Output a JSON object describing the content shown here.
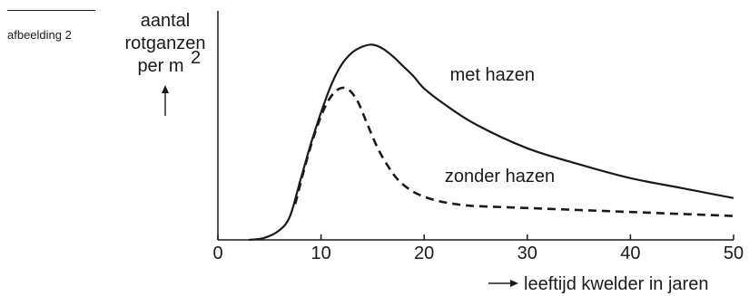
{
  "figure": {
    "label": "afbeelding 2"
  },
  "chart_data": {
    "type": "line",
    "title": "",
    "ylabel_lines": [
      "aantal",
      "rotganzen",
      "per m"
    ],
    "ylabel_superscript": "2",
    "ylabel_arrow": "↑",
    "xlabel_arrow": "⟶",
    "xlabel": "leeftijd kwelder in jaren",
    "xlim": [
      0,
      50
    ],
    "ylim": [
      0,
      1
    ],
    "y_ticks_shown": false,
    "grid": false,
    "x_ticks": [
      0,
      10,
      20,
      30,
      40,
      50
    ],
    "x_tick_labels": [
      "0",
      "10",
      "20",
      "30",
      "40",
      "50"
    ],
    "series": [
      {
        "name": "met hazen",
        "style": "solid",
        "color": "#1a1a1a",
        "points": [
          [
            3,
            0.0
          ],
          [
            4.5,
            0.01
          ],
          [
            6,
            0.05
          ],
          [
            7,
            0.12
          ],
          [
            8,
            0.3
          ],
          [
            9,
            0.48
          ],
          [
            10,
            0.64
          ],
          [
            11,
            0.78
          ],
          [
            12,
            0.88
          ],
          [
            13,
            0.94
          ],
          [
            14,
            0.97
          ],
          [
            15,
            0.98
          ],
          [
            16,
            0.96
          ],
          [
            17,
            0.92
          ],
          [
            18,
            0.87
          ],
          [
            19,
            0.82
          ],
          [
            20,
            0.76
          ],
          [
            22,
            0.68
          ],
          [
            25,
            0.58
          ],
          [
            30,
            0.46
          ],
          [
            35,
            0.38
          ],
          [
            40,
            0.31
          ],
          [
            45,
            0.26
          ],
          [
            50,
            0.21
          ]
        ]
      },
      {
        "name": "zonder hazen",
        "style": "dashed",
        "color": "#1a1a1a",
        "points": [
          [
            7.5,
            0.18
          ],
          [
            8.5,
            0.38
          ],
          [
            9.5,
            0.55
          ],
          [
            10.5,
            0.68
          ],
          [
            11.5,
            0.75
          ],
          [
            12.5,
            0.76
          ],
          [
            13.5,
            0.7
          ],
          [
            14.5,
            0.58
          ],
          [
            15.5,
            0.46
          ],
          [
            16.5,
            0.37
          ],
          [
            17.5,
            0.3
          ],
          [
            19,
            0.24
          ],
          [
            21,
            0.2
          ],
          [
            23,
            0.18
          ],
          [
            25,
            0.17
          ],
          [
            30,
            0.16
          ],
          [
            35,
            0.15
          ],
          [
            40,
            0.14
          ],
          [
            45,
            0.13
          ],
          [
            50,
            0.12
          ]
        ]
      }
    ],
    "annotations": [
      {
        "text": "met hazen",
        "x": 22.5,
        "y": 0.8
      },
      {
        "text": "zonder hazen",
        "x": 22.0,
        "y": 0.29
      }
    ]
  }
}
